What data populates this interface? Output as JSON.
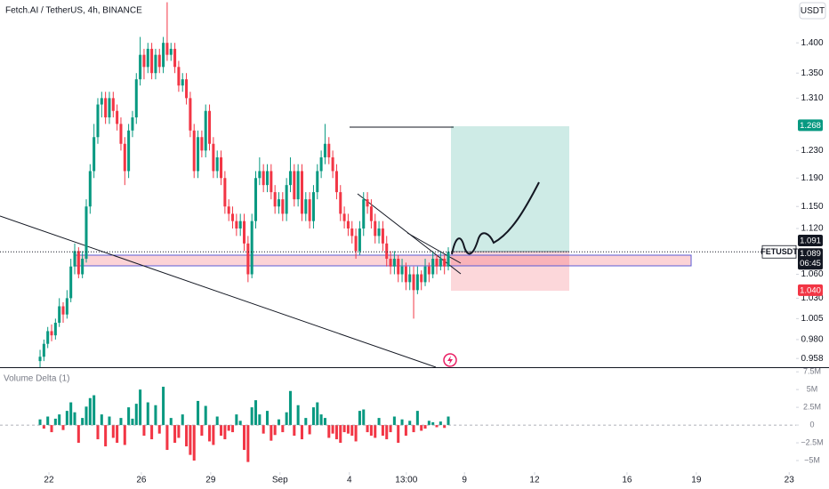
{
  "header": {
    "title": "Fetch.AI / TetherUS, 4h, BINANCE",
    "currency": "USDT"
  },
  "chart_data": [
    {
      "type": "candlestick",
      "symbol": "FETUSDT",
      "log": true,
      "up_color": "#089981",
      "down_color": "#f23645",
      "xlim": [
        -10.4,
        196.3
      ],
      "ylim": [
        0.948,
        1.474
      ],
      "xticks": [
        {
          "value": 2.3,
          "label": "22"
        },
        {
          "value": 26.3,
          "label": "26"
        },
        {
          "value": 44.3,
          "label": "29"
        },
        {
          "value": 62.3,
          "label": "Sep"
        },
        {
          "value": 80.3,
          "label": "4"
        },
        {
          "value": 95.1,
          "label": "13:00"
        },
        {
          "value": 110.2,
          "label": "9"
        },
        {
          "value": 128.4,
          "label": "12"
        },
        {
          "value": 152.4,
          "label": "16"
        },
        {
          "value": 170.4,
          "label": "19"
        },
        {
          "value": 194.5,
          "label": "23"
        }
      ],
      "yticks": [
        {
          "value": 1.4,
          "label": "1.400"
        },
        {
          "value": 1.35,
          "label": "1.350"
        },
        {
          "value": 1.31,
          "label": "1.310"
        },
        {
          "value": 1.23,
          "label": "1.230"
        },
        {
          "value": 1.19,
          "label": "1.190"
        },
        {
          "value": 1.15,
          "label": "1.150"
        },
        {
          "value": 1.12,
          "label": "1.120"
        },
        {
          "value": 1.06,
          "label": "1.060"
        },
        {
          "value": 1.03,
          "label": "1.030"
        },
        1.005,
        {
          "value": 0.98,
          "label": "0.980"
        },
        0.958
      ],
      "markers": [
        {
          "value": 1.268,
          "color": "#089981"
        },
        {
          "value": 1.091,
          "color": "#131722"
        },
        {
          "value": 1.04,
          "label": "1.040",
          "color": "#f23645"
        }
      ],
      "countdown": "06:45",
      "ohlc": [
        [
          0.955,
          0.968,
          0.948,
          0.96
        ],
        [
          0.96,
          0.98,
          0.955,
          0.975
        ],
        [
          0.975,
          0.995,
          0.97,
          0.99
        ],
        [
          0.99,
          0.998,
          0.978,
          0.985
        ],
        [
          0.985,
          1.005,
          0.98,
          1.0
        ],
        [
          1.0,
          1.03,
          0.995,
          1.02
        ],
        [
          1.02,
          1.025,
          1.0,
          1.01
        ],
        [
          1.01,
          1.04,
          1.005,
          1.03
        ],
        [
          1.03,
          1.08,
          1.025,
          1.07
        ],
        [
          1.07,
          1.1,
          1.06,
          1.09
        ],
        [
          1.09,
          1.095,
          1.055,
          1.06
        ],
        [
          1.06,
          1.09,
          1.055,
          1.08
        ],
        [
          1.08,
          1.16,
          1.075,
          1.15
        ],
        [
          1.15,
          1.21,
          1.14,
          1.2
        ],
        [
          1.2,
          1.27,
          1.19,
          1.25
        ],
        [
          1.25,
          1.31,
          1.24,
          1.3
        ],
        [
          1.3,
          1.32,
          1.28,
          1.31
        ],
        [
          1.31,
          1.32,
          1.27,
          1.28
        ],
        [
          1.28,
          1.32,
          1.27,
          1.31
        ],
        [
          1.31,
          1.32,
          1.28,
          1.29
        ],
        [
          1.29,
          1.3,
          1.26,
          1.27
        ],
        [
          1.27,
          1.28,
          1.23,
          1.24
        ],
        [
          1.24,
          1.25,
          1.18,
          1.2
        ],
        [
          1.2,
          1.27,
          1.19,
          1.26
        ],
        [
          1.26,
          1.29,
          1.25,
          1.28
        ],
        [
          1.28,
          1.35,
          1.27,
          1.34
        ],
        [
          1.34,
          1.41,
          1.33,
          1.38
        ],
        [
          1.38,
          1.39,
          1.34,
          1.36
        ],
        [
          1.36,
          1.4,
          1.35,
          1.39
        ],
        [
          1.39,
          1.4,
          1.34,
          1.35
        ],
        [
          1.35,
          1.39,
          1.34,
          1.38
        ],
        [
          1.38,
          1.39,
          1.35,
          1.36
        ],
        [
          1.36,
          1.41,
          1.35,
          1.4
        ],
        [
          1.4,
          1.47,
          1.37,
          1.38
        ],
        [
          1.38,
          1.4,
          1.37,
          1.39
        ],
        [
          1.39,
          1.4,
          1.35,
          1.36
        ],
        [
          1.36,
          1.37,
          1.32,
          1.33
        ],
        [
          1.33,
          1.35,
          1.32,
          1.34
        ],
        [
          1.34,
          1.35,
          1.3,
          1.31
        ],
        [
          1.31,
          1.32,
          1.25,
          1.26
        ],
        [
          1.26,
          1.27,
          1.19,
          1.2
        ],
        [
          1.2,
          1.26,
          1.19,
          1.25
        ],
        [
          1.25,
          1.26,
          1.22,
          1.23
        ],
        [
          1.23,
          1.3,
          1.22,
          1.29
        ],
        [
          1.29,
          1.3,
          1.23,
          1.24
        ],
        [
          1.24,
          1.25,
          1.19,
          1.2
        ],
        [
          1.2,
          1.23,
          1.19,
          1.22
        ],
        [
          1.22,
          1.23,
          1.18,
          1.19
        ],
        [
          1.19,
          1.2,
          1.14,
          1.15
        ],
        [
          1.15,
          1.16,
          1.13,
          1.14
        ],
        [
          1.14,
          1.15,
          1.12,
          1.13
        ],
        [
          1.13,
          1.14,
          1.11,
          1.12
        ],
        [
          1.12,
          1.14,
          1.11,
          1.13
        ],
        [
          1.13,
          1.14,
          1.09,
          1.1
        ],
        [
          1.1,
          1.11,
          1.05,
          1.06
        ],
        [
          1.06,
          1.14,
          1.055,
          1.13
        ],
        [
          1.13,
          1.2,
          1.12,
          1.19
        ],
        [
          1.19,
          1.22,
          1.18,
          1.2
        ],
        [
          1.2,
          1.21,
          1.17,
          1.18
        ],
        [
          1.18,
          1.21,
          1.17,
          1.2
        ],
        [
          1.2,
          1.21,
          1.16,
          1.17
        ],
        [
          1.17,
          1.18,
          1.14,
          1.15
        ],
        [
          1.15,
          1.17,
          1.14,
          1.16
        ],
        [
          1.16,
          1.17,
          1.13,
          1.14
        ],
        [
          1.14,
          1.19,
          1.13,
          1.18
        ],
        [
          1.18,
          1.22,
          1.17,
          1.2
        ],
        [
          1.2,
          1.21,
          1.15,
          1.16
        ],
        [
          1.16,
          1.21,
          1.15,
          1.2
        ],
        [
          1.2,
          1.21,
          1.13,
          1.14
        ],
        [
          1.14,
          1.17,
          1.13,
          1.16
        ],
        [
          1.16,
          1.17,
          1.12,
          1.13
        ],
        [
          1.13,
          1.18,
          1.12,
          1.17
        ],
        [
          1.17,
          1.21,
          1.16,
          1.2
        ],
        [
          1.2,
          1.23,
          1.19,
          1.22
        ],
        [
          1.22,
          1.27,
          1.21,
          1.24
        ],
        [
          1.24,
          1.25,
          1.21,
          1.22
        ],
        [
          1.22,
          1.23,
          1.19,
          1.2
        ],
        [
          1.2,
          1.21,
          1.16,
          1.17
        ],
        [
          1.17,
          1.18,
          1.13,
          1.14
        ],
        [
          1.14,
          1.15,
          1.12,
          1.13
        ],
        [
          1.13,
          1.14,
          1.11,
          1.12
        ],
        [
          1.12,
          1.13,
          1.1,
          1.11
        ],
        [
          1.11,
          1.12,
          1.08,
          1.09
        ],
        [
          1.09,
          1.13,
          1.085,
          1.12
        ],
        [
          1.12,
          1.17,
          1.11,
          1.16
        ],
        [
          1.16,
          1.17,
          1.14,
          1.15
        ],
        [
          1.15,
          1.16,
          1.12,
          1.13
        ],
        [
          1.13,
          1.14,
          1.1,
          1.11
        ],
        [
          1.11,
          1.13,
          1.1,
          1.12
        ],
        [
          1.12,
          1.13,
          1.09,
          1.1
        ],
        [
          1.1,
          1.11,
          1.07,
          1.08
        ],
        [
          1.08,
          1.09,
          1.06,
          1.07
        ],
        [
          1.07,
          1.09,
          1.06,
          1.08
        ],
        [
          1.08,
          1.085,
          1.05,
          1.06
        ],
        [
          1.06,
          1.08,
          1.05,
          1.07
        ],
        [
          1.07,
          1.075,
          1.04,
          1.05
        ],
        [
          1.05,
          1.07,
          1.04,
          1.06
        ],
        [
          1.06,
          1.07,
          1.005,
          1.04
        ],
        [
          1.04,
          1.07,
          1.035,
          1.06
        ],
        [
          1.06,
          1.065,
          1.04,
          1.05
        ],
        [
          1.05,
          1.08,
          1.045,
          1.07
        ],
        [
          1.07,
          1.075,
          1.05,
          1.06
        ],
        [
          1.06,
          1.09,
          1.055,
          1.08
        ],
        [
          1.08,
          1.085,
          1.06,
          1.07
        ],
        [
          1.07,
          1.09,
          1.065,
          1.08
        ],
        [
          1.08,
          1.085,
          1.06,
          1.07
        ],
        [
          1.07,
          1.095,
          1.065,
          1.089
        ]
      ]
    },
    {
      "type": "bar",
      "title": "Volume Delta (1)",
      "up_color": "#089981",
      "down_color": "#f23645",
      "xlim": [
        -10.4,
        196.3
      ],
      "ylim": [
        -6.5,
        7.9
      ],
      "yticks": [
        {
          "value": 7.5,
          "label": "7.5M"
        },
        {
          "value": 5,
          "label": "5M"
        },
        {
          "value": 2.5,
          "label": "2.5M"
        },
        0,
        {
          "value": -2.5,
          "label": "−2.5M"
        },
        {
          "value": -5,
          "label": "−5M"
        }
      ],
      "values": [
        0.8,
        -0.5,
        1.2,
        -1.0,
        0.9,
        1.5,
        -0.7,
        2.0,
        3.2,
        1.8,
        -2.5,
        1.0,
        2.6,
        3.8,
        4.2,
        -2.0,
        1.5,
        -3.0,
        1.2,
        -1.8,
        -2.5,
        1.0,
        -2.8,
        2.5,
        0.9,
        3.0,
        5.0,
        -1.5,
        3.2,
        -2.0,
        2.8,
        -1.2,
        5.4,
        -3.5,
        1.0,
        -2.5,
        -1.8,
        1.5,
        -3.0,
        -4.2,
        -5.0,
        3.4,
        -1.5,
        2.7,
        -2.3,
        -2.8,
        1.2,
        -1.5,
        -2.0,
        -0.8,
        -1.0,
        1.5,
        0.6,
        -3.5,
        -5.2,
        2.5,
        3.5,
        1.5,
        -1.2,
        2.0,
        -2.2,
        -1.4,
        0.8,
        -1.0,
        1.8,
        4.8,
        -1.5,
        2.8,
        -2.0,
        1.0,
        -1.3,
        2.5,
        3.2,
        1.5,
        1.0,
        -1.8,
        -1.2,
        -2.0,
        -2.5,
        -1.0,
        -1.2,
        -1.5,
        -2.3,
        2.0,
        2.2,
        -1.0,
        -1.5,
        -1.8,
        1.0,
        -1.5,
        -2.0,
        -1.0,
        1.2,
        -2.5,
        0.8,
        -1.5,
        0.6,
        -1.0,
        2.0,
        -0.8,
        -0.5,
        0.6,
        0.4,
        -0.3,
        0.5,
        -0.4,
        1.2
      ]
    }
  ]
}
